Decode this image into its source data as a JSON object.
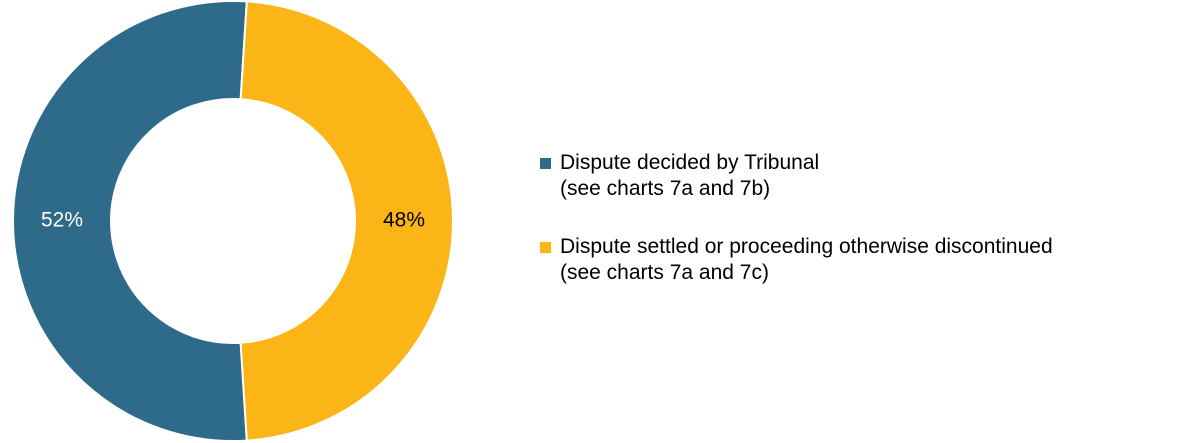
{
  "chart_data": {
    "type": "donut",
    "categories": [
      "Dispute decided by Tribunal\n(see charts 7a and 7b)",
      "Dispute settled or proceeding otherwise discontinued\n(see charts 7a and 7c)"
    ],
    "values": [
      52,
      48
    ],
    "value_labels": [
      "52%",
      "48%"
    ],
    "colors": [
      "#2e6b8a",
      "#fbb516"
    ],
    "label_colors": [
      "#ffffff",
      "#000000"
    ],
    "legend": "right"
  }
}
